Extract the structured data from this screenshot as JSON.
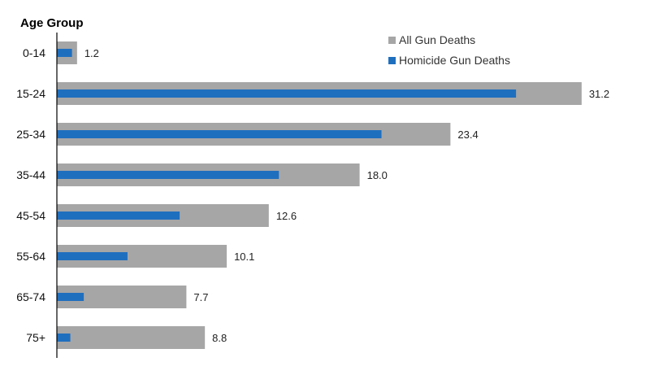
{
  "chart_data": {
    "type": "bar",
    "orientation": "horizontal",
    "title": "",
    "ylabel": "Age Group",
    "xlabel": "",
    "categories": [
      "0-14",
      "15-24",
      "25-34",
      "35-44",
      "45-54",
      "55-64",
      "65-74",
      "75+"
    ],
    "series": [
      {
        "name": "All Gun Deaths",
        "values": [
          1.2,
          31.2,
          23.4,
          18.0,
          12.6,
          10.1,
          7.7,
          8.8
        ],
        "color": "#a6a6a6"
      },
      {
        "name": "Homicide Gun Deaths",
        "values": [
          0.9,
          27.3,
          19.3,
          13.2,
          7.3,
          4.2,
          1.6,
          0.8
        ],
        "color": "#1f6fbf"
      }
    ],
    "data_labels": [
      "1.2",
      "31.2",
      "23.4",
      "18.0",
      "12.6",
      "10.1",
      "7.7",
      "8.8"
    ],
    "xlim": [
      0,
      35
    ],
    "grid": false,
    "legend_position": "top-right"
  }
}
